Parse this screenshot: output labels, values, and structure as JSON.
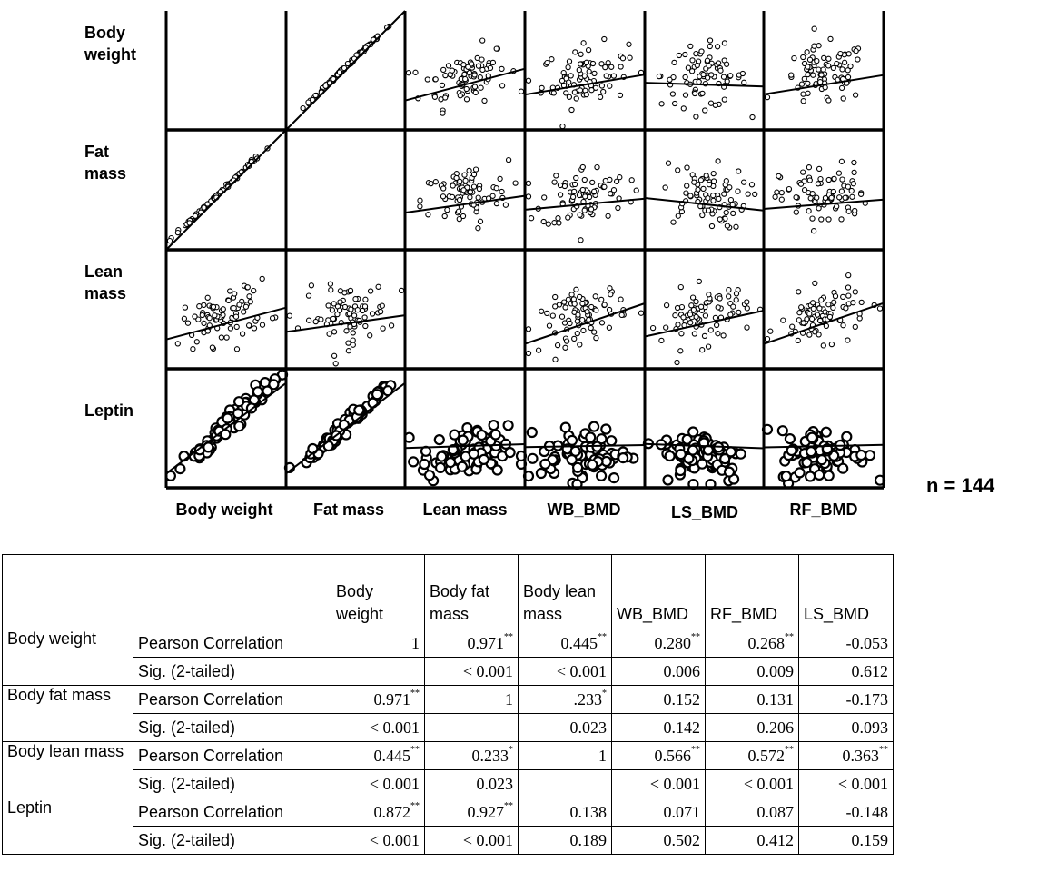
{
  "chart_data": {
    "type": "scatter",
    "subtype": "scatterplot-matrix",
    "rows": [
      "Body weight",
      "Fat mass",
      "Lean mass",
      "Leptin"
    ],
    "row_labels": [
      [
        "Body",
        "weight"
      ],
      [
        "Fat",
        "mass"
      ],
      [
        "Lean",
        "mass"
      ],
      [
        "Leptin"
      ]
    ],
    "columns": [
      "Body weight",
      "Fat mass",
      "Lean mass",
      "WB_BMD",
      "LS_BMD",
      "RF_BMD"
    ],
    "n_label": "n = 144",
    "fit_correlations": [
      [
        null,
        0.971,
        0.445,
        0.28,
        -0.053,
        0.268
      ],
      [
        0.971,
        null,
        0.233,
        0.152,
        -0.173,
        0.131
      ],
      [
        0.445,
        0.233,
        null,
        0.566,
        0.363,
        0.572
      ],
      [
        0.872,
        0.927,
        0.138,
        0.071,
        -0.148,
        0.087
      ]
    ],
    "marker": "open-circle",
    "grid": false
  },
  "table": {
    "headers": [
      [
        "Body",
        "weight"
      ],
      [
        "Body fat",
        "mass"
      ],
      [
        "Body lean",
        "mass"
      ],
      [
        "WB_BMD"
      ],
      [
        "RF_BMD"
      ],
      [
        "LS_BMD"
      ]
    ],
    "rows": [
      {
        "name": "Body weight",
        "pearson_label": "Pearson Correlation",
        "sig_label": "Sig. (2-tailed)",
        "pearson": [
          {
            "v": "1",
            "s": ""
          },
          {
            "v": "0.971",
            "s": "**"
          },
          {
            "v": "0.445",
            "s": "**"
          },
          {
            "v": "0.280",
            "s": "**"
          },
          {
            "v": "0.268",
            "s": "**"
          },
          {
            "v": "-0.053",
            "s": ""
          }
        ],
        "sig": [
          "",
          "< 0.001",
          "< 0.001",
          "0.006",
          "0.009",
          "0.612"
        ]
      },
      {
        "name": "Body fat mass",
        "pearson_label": "Pearson Correlation",
        "sig_label": "Sig. (2-tailed)",
        "pearson": [
          {
            "v": "0.971",
            "s": "**"
          },
          {
            "v": "1",
            "s": ""
          },
          {
            "v": ".233",
            "s": "*"
          },
          {
            "v": "0.152",
            "s": ""
          },
          {
            "v": "0.131",
            "s": ""
          },
          {
            "v": "-0.173",
            "s": ""
          }
        ],
        "sig": [
          "< 0.001",
          "",
          "0.023",
          "0.142",
          "0.206",
          "0.093"
        ]
      },
      {
        "name": "Body lean mass",
        "pearson_label": "Pearson Correlation",
        "sig_label": "Sig. (2-tailed)",
        "pearson": [
          {
            "v": "0.445",
            "s": "**"
          },
          {
            "v": "0.233",
            "s": "*"
          },
          {
            "v": "1",
            "s": ""
          },
          {
            "v": "0.566",
            "s": "**"
          },
          {
            "v": "0.572",
            "s": "**"
          },
          {
            "v": "0.363",
            "s": "**"
          }
        ],
        "sig": [
          "< 0.001",
          "0.023",
          "",
          "< 0.001",
          "< 0.001",
          "< 0.001"
        ]
      },
      {
        "name": "Leptin",
        "pearson_label": "Pearson Correlation",
        "sig_label": "Sig. (2-tailed)",
        "pearson": [
          {
            "v": "0.872",
            "s": "**"
          },
          {
            "v": "0.927",
            "s": "**"
          },
          {
            "v": "0.138",
            "s": ""
          },
          {
            "v": "0.071",
            "s": ""
          },
          {
            "v": "0.087",
            "s": ""
          },
          {
            "v": "-0.148",
            "s": ""
          }
        ],
        "sig": [
          "< 0.001",
          "< 0.001",
          "0.189",
          "0.502",
          "0.412",
          "0.159"
        ]
      }
    ]
  }
}
